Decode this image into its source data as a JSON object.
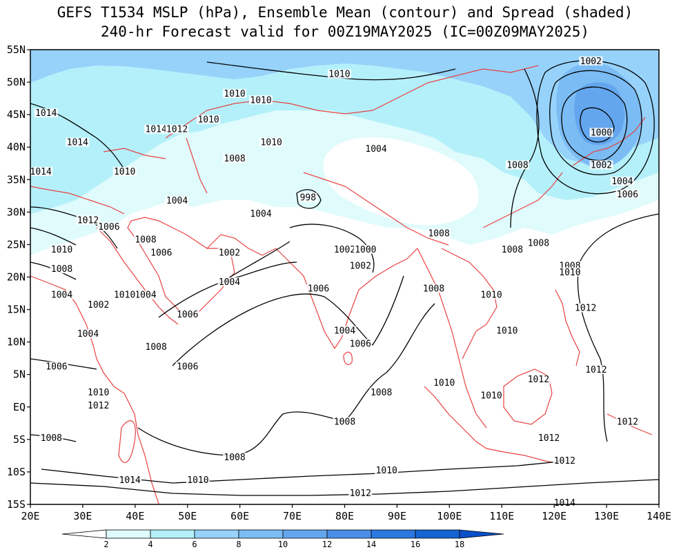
{
  "title": {
    "line1": "GEFS T1534 MSLP (hPa), Ensemble Mean (contour) and Spread (shaded)",
    "line2": "240-hr Forecast valid for 00Z19MAY2025 (IC=00Z09MAY2025)"
  },
  "axes": {
    "lat_labels": [
      "55N",
      "50N",
      "45N",
      "40N",
      "35N",
      "30N",
      "25N",
      "20N",
      "15N",
      "10N",
      "5N",
      "EQ",
      "5S",
      "10S",
      "15S"
    ],
    "lon_labels": [
      "20E",
      "30E",
      "40E",
      "50E",
      "60E",
      "70E",
      "80E",
      "90E",
      "100E",
      "110E",
      "120E",
      "130E",
      "140E"
    ],
    "lat_range": [
      -15,
      55
    ],
    "lon_range": [
      20,
      140
    ]
  },
  "colorbar": {
    "ticks": [
      "2",
      "4",
      "6",
      "8",
      "10",
      "12",
      "14",
      "16",
      "18"
    ],
    "colors": [
      "#ffffff",
      "#e0fbfc",
      "#b4f0fa",
      "#96d2fa",
      "#7cbcf4",
      "#64a6ee",
      "#4a8ee8",
      "#2a78e0",
      "#1464d2",
      "#0a50c8"
    ]
  },
  "contour_labels": [
    {
      "text": "1002",
      "lon": 127,
      "lat": 53
    },
    {
      "text": "1010",
      "lon": 79,
      "lat": 51
    },
    {
      "text": "1010",
      "lon": 59,
      "lat": 48
    },
    {
      "text": "1010",
      "lon": 64,
      "lat": 47
    },
    {
      "text": "1014",
      "lon": 23,
      "lat": 45
    },
    {
      "text": "1010",
      "lon": 54,
      "lat": 44
    },
    {
      "text": "1014",
      "lon": 44,
      "lat": 42.5
    },
    {
      "text": "1012",
      "lon": 48,
      "lat": 42.5
    },
    {
      "text": "1014",
      "lon": 29,
      "lat": 40.5
    },
    {
      "text": "1010",
      "lon": 66,
      "lat": 40.5
    },
    {
      "text": "1004",
      "lon": 86,
      "lat": 39.5
    },
    {
      "text": "1000",
      "lon": 129,
      "lat": 42
    },
    {
      "text": "1008",
      "lon": 59,
      "lat": 38
    },
    {
      "text": "1008",
      "lon": 113,
      "lat": 37
    },
    {
      "text": "1002",
      "lon": 129,
      "lat": 37
    },
    {
      "text": "1014",
      "lon": 22,
      "lat": 36
    },
    {
      "text": "1010",
      "lon": 38,
      "lat": 36
    },
    {
      "text": "1004",
      "lon": 133,
      "lat": 34.5
    },
    {
      "text": "1006",
      "lon": 134,
      "lat": 32.5
    },
    {
      "text": "998",
      "lon": 73,
      "lat": 32
    },
    {
      "text": "1004",
      "lon": 48,
      "lat": 31.5
    },
    {
      "text": "1004",
      "lon": 64,
      "lat": 29.5
    },
    {
      "text": "1012",
      "lon": 31,
      "lat": 28.5
    },
    {
      "text": "1006",
      "lon": 35,
      "lat": 27.5
    },
    {
      "text": "1008",
      "lon": 98,
      "lat": 26.5
    },
    {
      "text": "1008",
      "lon": 42,
      "lat": 25.5
    },
    {
      "text": "1008",
      "lon": 117,
      "lat": 25
    },
    {
      "text": "1010",
      "lon": 26,
      "lat": 24
    },
    {
      "text": "1002",
      "lon": 80,
      "lat": 24
    },
    {
      "text": "1000",
      "lon": 84,
      "lat": 24
    },
    {
      "text": "1008",
      "lon": 112,
      "lat": 24
    },
    {
      "text": "1006",
      "lon": 45,
      "lat": 23.5
    },
    {
      "text": "1002",
      "lon": 58,
      "lat": 23.5
    },
    {
      "text": "1002",
      "lon": 83,
      "lat": 21.5
    },
    {
      "text": "1008",
      "lon": 123,
      "lat": 21.5
    },
    {
      "text": "1008",
      "lon": 26,
      "lat": 21
    },
    {
      "text": "1010",
      "lon": 123,
      "lat": 20.5
    },
    {
      "text": "1004",
      "lon": 58,
      "lat": 19
    },
    {
      "text": "1006",
      "lon": 75,
      "lat": 18
    },
    {
      "text": "1008",
      "lon": 97,
      "lat": 18
    },
    {
      "text": "1004",
      "lon": 26,
      "lat": 17
    },
    {
      "text": "1004",
      "lon": 42,
      "lat": 17
    },
    {
      "text": "1010",
      "lon": 38,
      "lat": 17
    },
    {
      "text": "1010",
      "lon": 108,
      "lat": 17
    },
    {
      "text": "1002",
      "lon": 33,
      "lat": 15.5
    },
    {
      "text": "1012",
      "lon": 126,
      "lat": 15
    },
    {
      "text": "1006",
      "lon": 50,
      "lat": 14
    },
    {
      "text": "1010",
      "lon": 111,
      "lat": 11.5
    },
    {
      "text": "1004",
      "lon": 31,
      "lat": 11
    },
    {
      "text": "1004",
      "lon": 80,
      "lat": 11.5
    },
    {
      "text": "1006",
      "lon": 83,
      "lat": 9.5
    },
    {
      "text": "1008",
      "lon": 44,
      "lat": 9
    },
    {
      "text": "1006",
      "lon": 50,
      "lat": 6
    },
    {
      "text": "1006",
      "lon": 25,
      "lat": 6
    },
    {
      "text": "1012",
      "lon": 128,
      "lat": 5.5
    },
    {
      "text": "1012",
      "lon": 117,
      "lat": 4
    },
    {
      "text": "1010",
      "lon": 99,
      "lat": 3.5
    },
    {
      "text": "1010",
      "lon": 33,
      "lat": 2
    },
    {
      "text": "1008",
      "lon": 87,
      "lat": 2
    },
    {
      "text": "1010",
      "lon": 108,
      "lat": 1.5
    },
    {
      "text": "1012",
      "lon": 33,
      "lat": 0
    },
    {
      "text": "1008",
      "lon": 80,
      "lat": -2.5
    },
    {
      "text": "1012",
      "lon": 134,
      "lat": -2.5
    },
    {
      "text": "1008",
      "lon": 24,
      "lat": -5
    },
    {
      "text": "1012",
      "lon": 119,
      "lat": -5
    },
    {
      "text": "1008",
      "lon": 59,
      "lat": -8
    },
    {
      "text": "1012",
      "lon": 122,
      "lat": -8.5
    },
    {
      "text": "1010",
      "lon": 88,
      "lat": -10
    },
    {
      "text": "1014",
      "lon": 39,
      "lat": -11.5
    },
    {
      "text": "1010",
      "lon": 52,
      "lat": -11.5
    },
    {
      "text": "1012",
      "lon": 83,
      "lat": -13.5
    },
    {
      "text": "1014",
      "lon": 122,
      "lat": -15
    }
  ]
}
